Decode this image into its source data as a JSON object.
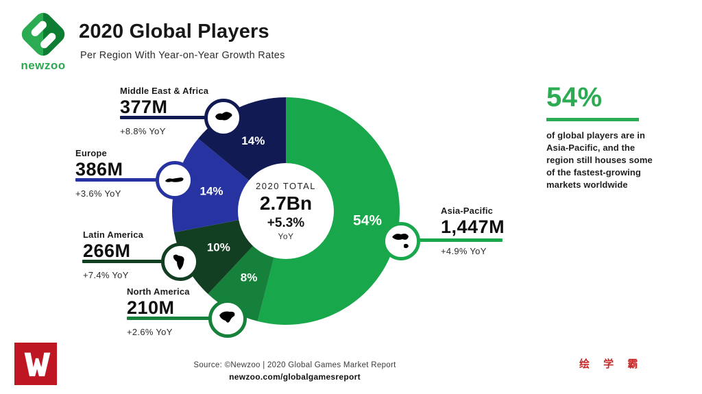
{
  "header": {
    "logo_text": "newzoo",
    "title": "2020 Global Players",
    "subtitle": "Per Region With Year-on-Year Growth Rates"
  },
  "chart_data": {
    "type": "pie",
    "variant": "donut",
    "order": "clockwise-from-top",
    "center": {
      "label": "2020 TOTAL",
      "value": "2.7Bn",
      "growth": "+5.3%",
      "growth_unit": "YoY"
    },
    "regions": [
      {
        "id": "asia-pacific",
        "name": "Asia-Pacific",
        "players": "1,447M",
        "share_pct": 54,
        "yoy": "+4.9% YoY",
        "color": "#18a74b"
      },
      {
        "id": "north-america",
        "name": "North America",
        "players": "210M",
        "share_pct": 8,
        "yoy": "+2.6% YoY",
        "color": "#15813b"
      },
      {
        "id": "latin-america",
        "name": "Latin America",
        "players": "266M",
        "share_pct": 10,
        "yoy": "+7.4% YoY",
        "color": "#123e21"
      },
      {
        "id": "europe",
        "name": "Europe",
        "players": "386M",
        "share_pct": 14,
        "yoy": "+3.6% YoY",
        "color": "#2733a1"
      },
      {
        "id": "middle-east-africa",
        "name": "Middle East & Africa",
        "players": "377M",
        "share_pct": 14,
        "yoy": "+8.8% YoY",
        "color": "#111a52"
      }
    ]
  },
  "highlight": {
    "value": "54%",
    "color": "#2bab52",
    "text": "of global players are in\nAsia-Pacific, and the\nregion still houses some\nof the fastest-growing\nmarkets worldwide"
  },
  "footer": {
    "source": "Source: ©Newzoo | 2020 Global Games Market Report",
    "url": "newzoo.com/globalgamesreport"
  },
  "watermark": {
    "text": "绘 学 霸"
  }
}
